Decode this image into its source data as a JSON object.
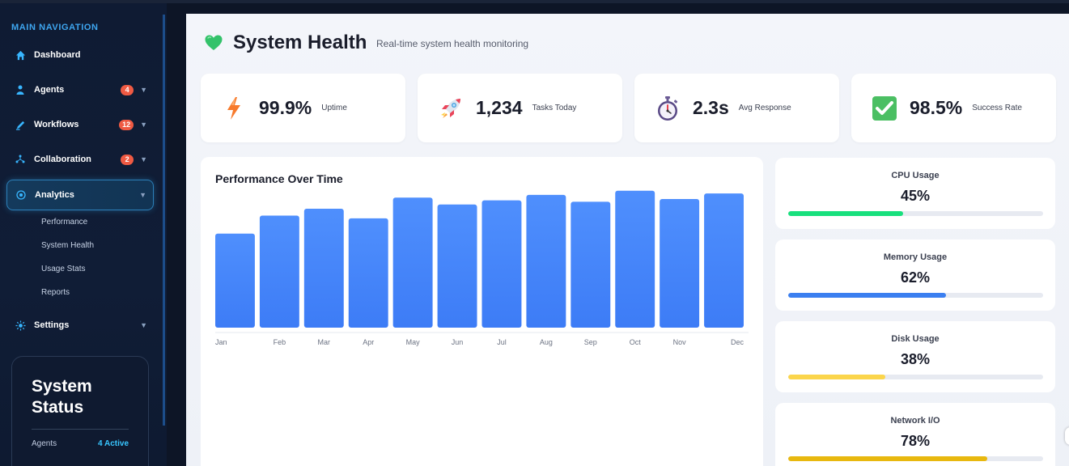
{
  "sidebar": {
    "header": "MAIN NAVIGATION",
    "items": [
      {
        "label": "Dashboard",
        "icon": "home-icon"
      },
      {
        "label": "Agents",
        "icon": "user-icon",
        "badge": "4"
      },
      {
        "label": "Workflows",
        "icon": "pen-icon",
        "badge": "12"
      },
      {
        "label": "Collaboration",
        "icon": "share-icon",
        "badge": "2"
      },
      {
        "label": "Analytics",
        "icon": "target-icon",
        "active": true
      },
      {
        "label": "Settings",
        "icon": "sun-gear-icon"
      }
    ],
    "analytics_sub": [
      "Performance",
      "System Health",
      "Usage Stats",
      "Reports"
    ],
    "status": {
      "title": "System Status",
      "rows": [
        {
          "key": "Agents",
          "value": "4 Active"
        }
      ]
    }
  },
  "header": {
    "title": "System Health",
    "subtitle": "Real-time system health monitoring",
    "icon": "green-heart-icon"
  },
  "stats": [
    {
      "value": "99.9%",
      "label": "Uptime",
      "icon": "lightning-icon"
    },
    {
      "value": "1,234",
      "label": "Tasks Today",
      "icon": "rocket-icon"
    },
    {
      "value": "2.3s",
      "label": "Avg Response",
      "icon": "stopwatch-icon"
    },
    {
      "value": "98.5%",
      "label": "Success Rate",
      "icon": "checkmark-icon"
    }
  ],
  "metrics": [
    {
      "label": "CPU Usage",
      "value": "45%",
      "fraction": 0.45,
      "color": "#18e07d"
    },
    {
      "label": "Memory Usage",
      "value": "62%",
      "fraction": 0.62,
      "color": "#3b7ff0"
    },
    {
      "label": "Disk Usage",
      "value": "38%",
      "fraction": 0.38,
      "color": "#fbd54b"
    },
    {
      "label": "Network I/O",
      "value": "78%",
      "fraction": 0.78,
      "color": "#e8b80f"
    }
  ],
  "chart_data": {
    "type": "bar",
    "title": "Performance Over Time",
    "categories": [
      "Jan",
      "Feb",
      "Mar",
      "Apr",
      "May",
      "Jun",
      "Jul",
      "Aug",
      "Sep",
      "Oct",
      "Nov",
      "Dec"
    ],
    "values": [
      68,
      81,
      86,
      79,
      94,
      89,
      92,
      96,
      91,
      99,
      93,
      97
    ],
    "ylim": [
      0,
      100
    ],
    "grid": false,
    "bar_color": "#4c8dfc"
  }
}
